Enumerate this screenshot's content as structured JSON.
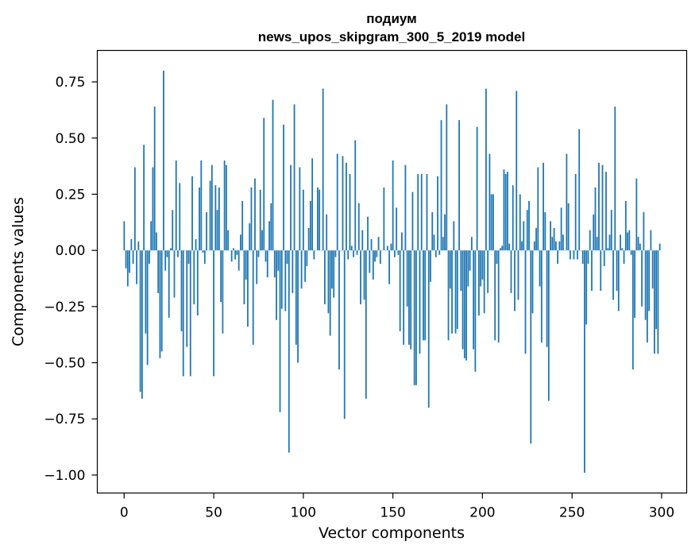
{
  "chart_data": {
    "type": "bar",
    "title": "подиум",
    "subtitle": "news_upos_skipgram_300_5_2019 model",
    "xlabel": "Vector components",
    "ylabel": "Components values",
    "xlim": [
      -15,
      314
    ],
    "ylim": [
      -1.08,
      0.89
    ],
    "x_ticks": [
      0,
      50,
      100,
      150,
      200,
      250,
      300
    ],
    "y_ticks": [
      -1.0,
      -0.75,
      -0.5,
      -0.25,
      0.0,
      0.25,
      0.5,
      0.75
    ],
    "y_tick_labels": [
      "−1.00",
      "−0.75",
      "−0.50",
      "−0.25",
      "0.00",
      "0.25",
      "0.50",
      "0.75"
    ],
    "bar_color": "#1f77b4",
    "values": [
      0.13,
      -0.08,
      -0.16,
      -0.1,
      0.05,
      -0.06,
      0.37,
      -0.15,
      0.04,
      -0.63,
      -0.66,
      0.47,
      -0.37,
      -0.51,
      -0.06,
      0.13,
      0.37,
      0.64,
      0.08,
      -0.19,
      -0.48,
      -0.45,
      0.8,
      -0.09,
      -0.03,
      -0.3,
      0.01,
      0.18,
      -0.21,
      0.4,
      -0.03,
      0.3,
      -0.36,
      -0.56,
      0.0,
      -0.43,
      -0.06,
      -0.56,
      0.33,
      -0.24,
      0.05,
      -0.29,
      0.28,
      0.4,
      -0.01,
      -0.06,
      0.17,
      0.0,
      0.31,
      0.38,
      -0.56,
      0.29,
      0.18,
      0.28,
      -0.23,
      -0.37,
      0.4,
      0.38,
      0.09,
      0.0,
      -0.05,
      0.01,
      -0.04,
      -0.02,
      -0.09,
      0.07,
      0.22,
      -0.24,
      -0.13,
      -0.34,
      0.12,
      0.28,
      -0.42,
      0.32,
      -0.15,
      -0.03,
      0.27,
      0.09,
      0.59,
      -0.05,
      -0.12,
      0.13,
      0.21,
      0.67,
      -0.12,
      -0.31,
      -0.09,
      -0.72,
      -0.26,
      0.56,
      -0.27,
      -0.06,
      -0.9,
      0.38,
      -0.19,
      0.65,
      -0.42,
      -0.5,
      0.37,
      -0.17,
      0.27,
      -0.14,
      -0.07,
      0.1,
      0.22,
      0.41,
      -0.04,
      0.0,
      0.28,
      0.27,
      0.0,
      0.72,
      -0.24,
      0.16,
      -0.28,
      -0.38,
      -0.17,
      -0.21,
      -0.03,
      0.43,
      -0.53,
      0.0,
      0.42,
      -0.75,
      0.39,
      -0.04,
      0.34,
      0.02,
      -0.03,
      0.49,
      -0.02,
      0.21,
      -0.24,
      0.09,
      -0.22,
      -0.66,
      0.15,
      -0.1,
      0.05,
      -0.13,
      -0.05,
      -0.03,
      0.06,
      -0.06,
      0.0,
      0.28,
      0.0,
      0.02,
      -0.15,
      0.03,
      0.4,
      -0.03,
      0.19,
      -0.02,
      -0.36,
      0.08,
      -0.42,
      0.38,
      -0.25,
      -0.42,
      -0.44,
      0.26,
      -0.6,
      -0.6,
      0.34,
      -0.46,
      0.34,
      -0.4,
      -0.4,
      0.34,
      -0.7,
      -0.14,
      0.17,
      0.07,
      -0.03,
      0.33,
      -0.02,
      0.58,
      0.06,
      0.16,
      0.65,
      -0.4,
      -0.17,
      -0.37,
      0.13,
      -0.37,
      -0.35,
      0.58,
      -0.18,
      -0.44,
      -0.48,
      -0.49,
      -0.16,
      -0.09,
      0.06,
      -0.44,
      -0.54,
      0.55,
      -0.29,
      -0.16,
      -0.13,
      -0.28,
      0.72,
      -0.19,
      0.43,
      0.25,
      0.25,
      -0.4,
      -0.06,
      -0.41,
      0.01,
      0.02,
      0.36,
      0.34,
      0.35,
      0.03,
      -0.19,
      0.29,
      -0.27,
      0.71,
      -0.22,
      0.25,
      0.04,
      0.13,
      -0.46,
      0.18,
      0.22,
      -0.86,
      -0.28,
      0.04,
      0.1,
      0.37,
      -0.16,
      -0.41,
      0.39,
      0.17,
      -0.43,
      -0.67,
      0.13,
      0.06,
      0.1,
      0.04,
      -0.06,
      0.04,
      0.19,
      0.07,
      0.0,
      0.43,
      0.21,
      -0.04,
      0.0,
      -0.04,
      0.34,
      -0.04,
      0.54,
      0.0,
      -0.06,
      -0.99,
      -0.33,
      -0.06,
      0.09,
      -0.18,
      0.16,
      0.28,
      0.06,
      0.39,
      -0.18,
      0.38,
      -0.07,
      0.35,
      0.01,
      0.07,
      0.18,
      -0.22,
      0.64,
      -0.18,
      -0.27,
      0.07,
      0.01,
      -0.06,
      0.22,
      0.08,
      0.09,
      -0.02,
      -0.53,
      -0.3,
      0.32,
      0.06,
      0.03,
      -0.25,
      0.17,
      -0.31,
      -0.41,
      -0.27,
      0.09,
      -0.17,
      -0.46,
      -0.35,
      -0.46,
      0.03
    ]
  }
}
